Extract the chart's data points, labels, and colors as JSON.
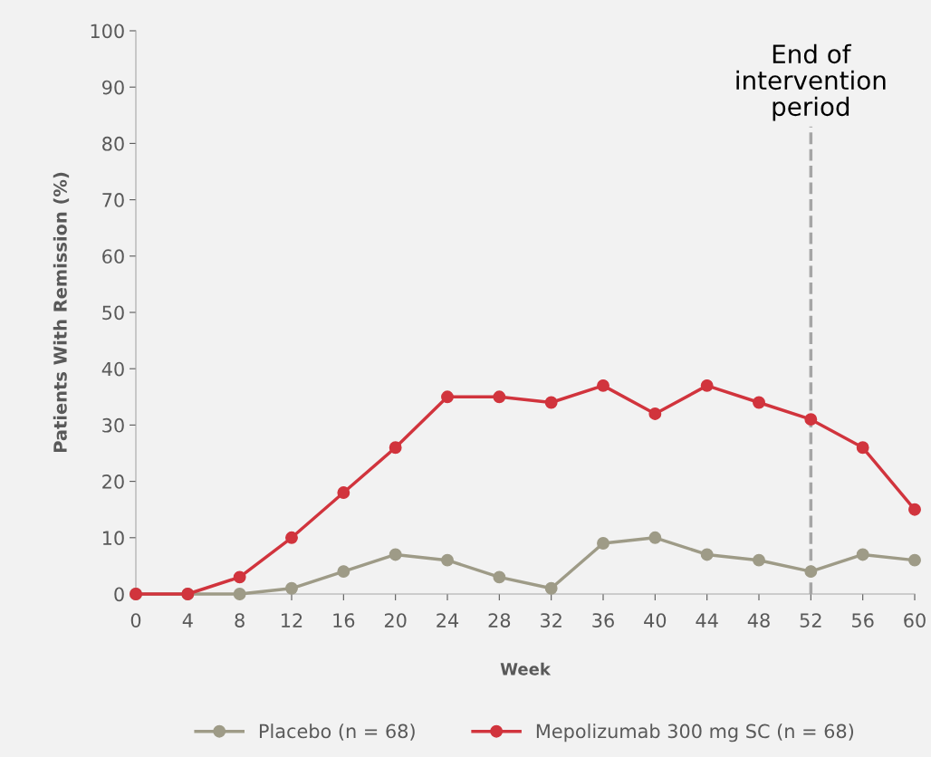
{
  "chart_data": {
    "type": "line",
    "xlabel": "Week",
    "ylabel": "Patients With Remission (%)",
    "x": [
      0,
      4,
      8,
      12,
      16,
      20,
      24,
      28,
      32,
      36,
      40,
      44,
      48,
      52,
      56,
      60
    ],
    "series": [
      {
        "name": "Placebo (n = 68)",
        "color": "#9e9b87",
        "values": [
          0,
          0,
          0,
          1,
          4,
          7,
          6,
          3,
          1,
          9,
          10,
          7,
          6,
          4,
          7,
          6
        ]
      },
      {
        "name": "Mepolizumab 300 mg SC (n = 68)",
        "color": "#d1343d",
        "values": [
          0,
          0,
          3,
          10,
          18,
          26,
          35,
          35,
          34,
          37,
          32,
          37,
          34,
          31,
          26,
          15
        ]
      }
    ],
    "xlim": [
      0,
      60
    ],
    "xticks": [
      0,
      4,
      8,
      12,
      16,
      20,
      24,
      28,
      32,
      36,
      40,
      44,
      48,
      52,
      56,
      60
    ],
    "ylim": [
      0,
      100
    ],
    "yticks": [
      0,
      10,
      20,
      30,
      40,
      50,
      60,
      70,
      80,
      90,
      100
    ],
    "ref_lines": [
      {
        "axis": "x",
        "value": 52,
        "label": "End of\nintervention\nperiod",
        "color": "#a6a6a6",
        "line_style": "dashed"
      }
    ],
    "grid": false,
    "legend": "bottom",
    "marker": "circle",
    "line_style": "solid"
  }
}
